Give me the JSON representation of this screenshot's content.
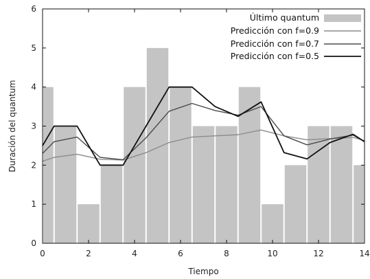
{
  "chart_data": {
    "type": "bar+line",
    "xlabel": "Tiempo",
    "ylabel": "Duración del quantum",
    "xlim": [
      0,
      14
    ],
    "ylim": [
      0,
      6
    ],
    "xticks": [
      "0",
      "2",
      "4",
      "6",
      "8",
      "10",
      "12",
      "14"
    ],
    "yticks": [
      "0",
      "1",
      "2",
      "3",
      "4",
      "5",
      "6"
    ],
    "grid": false,
    "legend": {
      "placement": "top-right",
      "entries": [
        "Último quantum",
        "Predicción con f=0.9",
        "Predicción con f=0.7",
        "Predicción con f=0.5"
      ]
    },
    "bars": {
      "name": "Último quantum",
      "color": "#c4c4c4",
      "x": [
        0,
        1,
        2,
        3,
        4,
        5,
        6,
        7,
        8,
        9,
        10,
        11,
        12,
        13,
        14
      ],
      "values": [
        4,
        3,
        1,
        2,
        4,
        5,
        4,
        3,
        3,
        4,
        1,
        2,
        3,
        3,
        2
      ]
    },
    "series": [
      {
        "name": "Predicción con f=0.9",
        "color": "#8c8c8c",
        "x": [
          0,
          0.5,
          1.5,
          2.5,
          3.5,
          4.5,
          5.5,
          6.5,
          7.5,
          8.5,
          9.5,
          10.5,
          11.5,
          12.5,
          13.5,
          14.0
        ],
        "values": [
          2.1,
          2.2,
          2.28,
          2.15,
          2.13,
          2.32,
          2.58,
          2.72,
          2.75,
          2.78,
          2.9,
          2.75,
          2.65,
          2.68,
          2.71,
          2.63
        ]
      },
      {
        "name": "Predicción con f=0.7",
        "color": "#4a4a4a",
        "x": [
          0,
          0.5,
          1.5,
          2.5,
          3.5,
          4.5,
          5.5,
          6.5,
          7.5,
          8.5,
          9.5,
          10.5,
          11.5,
          12.5,
          13.5,
          14.0
        ],
        "values": [
          2.3,
          2.6,
          2.72,
          2.2,
          2.14,
          2.7,
          3.38,
          3.58,
          3.4,
          3.28,
          3.5,
          2.75,
          2.52,
          2.67,
          2.77,
          2.6
        ]
      },
      {
        "name": "Predicción con f=0.5",
        "color": "#111111",
        "x": [
          0,
          0.5,
          1.5,
          2.5,
          3.5,
          4.5,
          5.5,
          6.5,
          7.5,
          8.5,
          9.5,
          10.5,
          11.5,
          12.5,
          13.5,
          14.0
        ],
        "values": [
          2.5,
          3.0,
          3.0,
          2.0,
          2.0,
          3.0,
          4.0,
          4.0,
          3.5,
          3.25,
          3.62,
          2.32,
          2.16,
          2.58,
          2.79,
          2.6
        ]
      }
    ]
  }
}
